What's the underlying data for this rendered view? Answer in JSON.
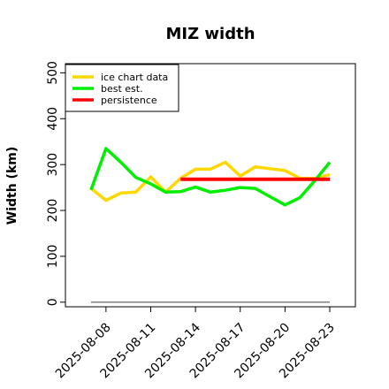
{
  "chart_data": {
    "type": "line",
    "title": "MIZ width",
    "xlabel": "",
    "ylabel": "Width (km)",
    "ylim": [
      -10,
      520
    ],
    "yticks": [
      0,
      100,
      200,
      300,
      400,
      500
    ],
    "x_dates": [
      "2025-08-07",
      "2025-08-08",
      "2025-08-09",
      "2025-08-10",
      "2025-08-11",
      "2025-08-12",
      "2025-08-13",
      "2025-08-14",
      "2025-08-15",
      "2025-08-16",
      "2025-08-17",
      "2025-08-18",
      "2025-08-19",
      "2025-08-20",
      "2025-08-21",
      "2025-08-22",
      "2025-08-23"
    ],
    "xticks": [
      "2025-08-08",
      "2025-08-11",
      "2025-08-14",
      "2025-08-17",
      "2025-08-20",
      "2025-08-23"
    ],
    "grid": false,
    "legend_position": "top-left",
    "series": [
      {
        "name": "ice chart data",
        "color": "#ffd700",
        "x": [
          "2025-08-07",
          "2025-08-08",
          "2025-08-09",
          "2025-08-10",
          "2025-08-11",
          "2025-08-12",
          "2025-08-13",
          "2025-08-14",
          "2025-08-15",
          "2025-08-16",
          "2025-08-17",
          "2025-08-18",
          "2025-08-19",
          "2025-08-20",
          "2025-08-21",
          "2025-08-22",
          "2025-08-23"
        ],
        "values": [
          248,
          222,
          238,
          240,
          273,
          240,
          270,
          290,
          290,
          305,
          275,
          295,
          291,
          287,
          270,
          270,
          278
        ]
      },
      {
        "name": "best est.",
        "color": "#00ee00",
        "x": [
          "2025-08-07",
          "2025-08-08",
          "2025-08-09",
          "2025-08-10",
          "2025-08-11",
          "2025-08-12",
          "2025-08-13",
          "2025-08-14",
          "2025-08-15",
          "2025-08-16",
          "2025-08-17",
          "2025-08-18",
          "2025-08-19",
          "2025-08-20",
          "2025-08-21",
          "2025-08-22",
          "2025-08-23"
        ],
        "values": [
          245,
          335,
          305,
          272,
          258,
          240,
          241,
          251,
          240,
          244,
          250,
          248,
          230,
          212,
          228,
          265,
          305
        ]
      },
      {
        "name": "persistence",
        "color": "#ff0000",
        "x": [
          "2025-08-13",
          "2025-08-23"
        ],
        "values": [
          268,
          268
        ]
      }
    ],
    "reference_line": {
      "color": "#808080",
      "x": [
        "2025-08-07",
        "2025-08-23"
      ],
      "values": [
        0,
        0
      ]
    }
  }
}
